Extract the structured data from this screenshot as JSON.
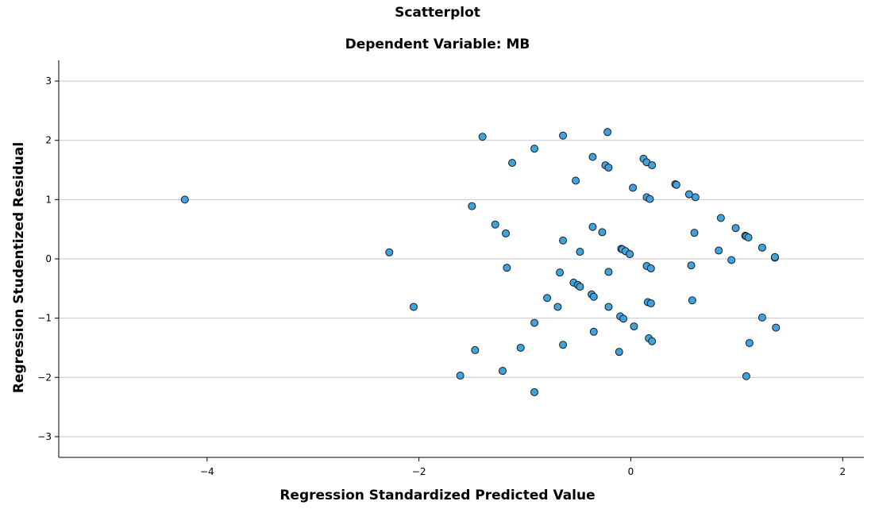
{
  "chart_data": {
    "type": "scatter",
    "title": "Scatterplot",
    "subtitle": "Dependent Variable: MB",
    "xlabel": "Regression Standardized Predicted Value",
    "ylabel": "Regression Studentized Residual",
    "xlim": [
      -5.4,
      2.2
    ],
    "ylim": [
      -3.35,
      3.35
    ],
    "xticks": [
      -4,
      -2,
      0,
      2
    ],
    "yticks": [
      -3,
      -2,
      -1,
      0,
      1,
      2,
      3
    ],
    "xtick_labels": [
      "−4",
      "−2",
      "0",
      "2"
    ],
    "ytick_labels": [
      "−3",
      "−2",
      "−1",
      "0",
      "1",
      "2",
      "3"
    ],
    "grid": "horizontal",
    "marker_color": "#3fa3e0",
    "marker_edge": "#1a1a1a",
    "points": [
      [
        -4.21,
        1.0
      ],
      [
        -2.28,
        0.11
      ],
      [
        -2.05,
        -0.81
      ],
      [
        -1.61,
        -1.97
      ],
      [
        -1.5,
        0.89
      ],
      [
        -1.47,
        -1.54
      ],
      [
        -1.4,
        2.06
      ],
      [
        -1.28,
        0.58
      ],
      [
        -1.21,
        -1.89
      ],
      [
        -1.18,
        0.43
      ],
      [
        -1.17,
        -0.15
      ],
      [
        -1.12,
        1.62
      ],
      [
        -1.04,
        -1.5
      ],
      [
        -0.91,
        1.86
      ],
      [
        -0.91,
        -1.08
      ],
      [
        -0.91,
        -2.25
      ],
      [
        -0.79,
        -0.66
      ],
      [
        -0.69,
        -0.81
      ],
      [
        -0.67,
        -0.23
      ],
      [
        -0.64,
        2.08
      ],
      [
        -0.64,
        0.31
      ],
      [
        -0.64,
        -1.45
      ],
      [
        -0.54,
        -0.4
      ],
      [
        -0.52,
        1.32
      ],
      [
        -0.5,
        -0.44
      ],
      [
        -0.48,
        0.12
      ],
      [
        -0.48,
        -0.47
      ],
      [
        -0.37,
        -0.6
      ],
      [
        -0.36,
        1.72
      ],
      [
        -0.36,
        0.54
      ],
      [
        -0.35,
        -0.64
      ],
      [
        -0.35,
        -1.23
      ],
      [
        -0.27,
        0.45
      ],
      [
        -0.24,
        1.58
      ],
      [
        -0.22,
        2.14
      ],
      [
        -0.21,
        1.54
      ],
      [
        -0.21,
        -0.22
      ],
      [
        -0.21,
        -0.81
      ],
      [
        -0.11,
        -1.57
      ],
      [
        -0.1,
        -0.97
      ],
      [
        -0.09,
        0.17
      ],
      [
        -0.08,
        0.16
      ],
      [
        -0.07,
        -1.01
      ],
      [
        -0.05,
        0.13
      ],
      [
        -0.01,
        0.08
      ],
      [
        0.02,
        1.2
      ],
      [
        0.03,
        -1.14
      ],
      [
        0.12,
        1.69
      ],
      [
        0.15,
        1.63
      ],
      [
        0.15,
        1.04
      ],
      [
        0.15,
        -0.12
      ],
      [
        0.16,
        -0.73
      ],
      [
        0.17,
        -1.34
      ],
      [
        0.18,
        1.01
      ],
      [
        0.19,
        -0.16
      ],
      [
        0.19,
        -0.75
      ],
      [
        0.2,
        -1.39
      ],
      [
        0.2,
        1.58
      ],
      [
        0.42,
        1.26
      ],
      [
        0.43,
        1.25
      ],
      [
        0.55,
        1.09
      ],
      [
        0.57,
        -0.11
      ],
      [
        0.58,
        -0.7
      ],
      [
        0.6,
        0.44
      ],
      [
        0.61,
        1.04
      ],
      [
        0.83,
        0.14
      ],
      [
        0.85,
        0.69
      ],
      [
        0.95,
        -0.02
      ],
      [
        0.99,
        0.52
      ],
      [
        1.08,
        0.39
      ],
      [
        1.09,
        0.38
      ],
      [
        1.09,
        -1.98
      ],
      [
        1.11,
        0.36
      ],
      [
        1.12,
        -1.42
      ],
      [
        1.24,
        0.19
      ],
      [
        1.24,
        -0.99
      ],
      [
        1.36,
        0.02
      ],
      [
        1.36,
        0.03
      ],
      [
        1.37,
        -1.16
      ]
    ]
  }
}
